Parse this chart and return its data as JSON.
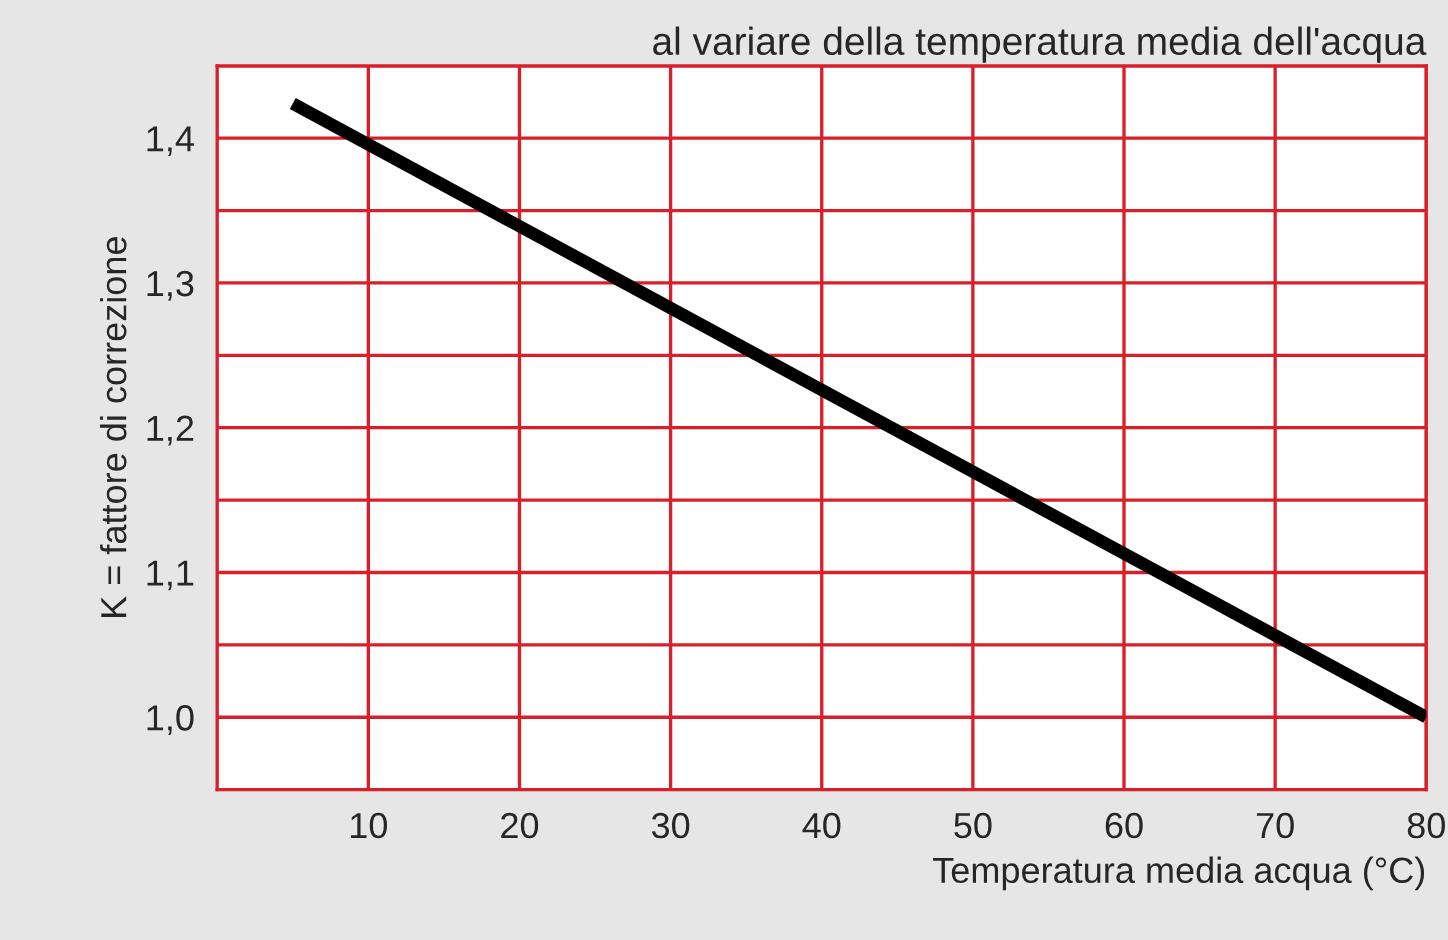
{
  "chart_data": {
    "type": "line",
    "title": "al variare della temperatura media dell'acqua",
    "xlabel": "Temperatura media acqua (°C)",
    "ylabel": "K = fattore di correzione",
    "x": [
      5,
      80
    ],
    "series": [
      {
        "color": "#000000",
        "values": [
          1.424,
          1.0
        ]
      }
    ],
    "xlim": [
      0,
      80
    ],
    "xticks": [
      10,
      20,
      30,
      40,
      50,
      60,
      70,
      80
    ],
    "ylim": [
      0.95,
      1.45
    ],
    "yticks": [
      {
        "value": 0.95,
        "label": null
      },
      {
        "value": 1.0,
        "label": "1,0"
      },
      {
        "value": 1.05,
        "label": null
      },
      {
        "value": 1.1,
        "label": "1,1"
      },
      {
        "value": 1.15,
        "label": null
      },
      {
        "value": 1.2,
        "label": "1,2"
      },
      {
        "value": 1.25,
        "label": null
      },
      {
        "value": 1.3,
        "label": "1,3"
      },
      {
        "value": 1.35,
        "label": null
      },
      {
        "value": 1.4,
        "label": "1,4"
      },
      {
        "value": 1.45,
        "label": null
      }
    ],
    "grid": true,
    "marker": "none",
    "line_style": "solid"
  }
}
